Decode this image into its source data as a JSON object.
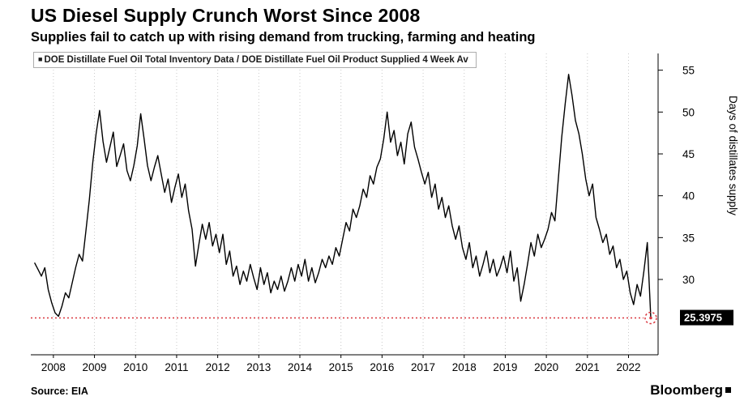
{
  "header": {
    "title": "US Diesel Supply Crunch Worst Since 2008",
    "subtitle": "Supplies fail to catch up with rising demand from trucking, farming and heating"
  },
  "legend": {
    "marker": "■",
    "label": "DOE Distillate Fuel Oil Total Inventory Data / DOE Distillate Fuel Oil Product Supplied 4 Week Av"
  },
  "footer": {
    "source": "Source: EIA",
    "brand": "Bloomberg"
  },
  "chart_data": {
    "type": "line",
    "title": "US Diesel Supply Crunch Worst Since 2008",
    "xlabel": "",
    "ylabel": "Days of distillates supply",
    "xlim": [
      2007.45,
      2022.72
    ],
    "ylim": [
      21,
      57
    ],
    "x_ticks": [
      2008,
      2009,
      2010,
      2011,
      2012,
      2013,
      2014,
      2015,
      2016,
      2017,
      2018,
      2019,
      2020,
      2021,
      2022
    ],
    "y_ticks": [
      30,
      35,
      40,
      45,
      50,
      55
    ],
    "grid": "vertical-dotted",
    "legend_position": "top-left",
    "line_color": "#000000",
    "series": [
      {
        "name": "DOE Distillate Fuel Oil Total Inventory Data / DOE Distillate Fuel Oil Product Supplied 4 Week Av",
        "color": "#000000",
        "x_start": 2007.5417,
        "x_step": 0.0833333,
        "values": [
          32.0,
          31.2,
          30.4,
          31.4,
          28.8,
          27.2,
          26.0,
          25.6,
          26.8,
          28.4,
          27.8,
          29.6,
          31.4,
          33.0,
          32.2,
          35.8,
          39.5,
          44.0,
          47.5,
          50.2,
          46.5,
          44.0,
          45.8,
          47.6,
          43.5,
          44.8,
          46.2,
          43.0,
          41.8,
          43.6,
          46.0,
          49.8,
          46.8,
          43.6,
          41.8,
          43.4,
          44.8,
          42.6,
          40.4,
          42.0,
          39.2,
          41.0,
          42.6,
          39.8,
          41.4,
          38.2,
          36.0,
          31.6,
          34.2,
          36.6,
          34.8,
          36.8,
          34.0,
          35.4,
          33.2,
          35.4,
          31.8,
          33.4,
          30.4,
          31.6,
          29.4,
          31.0,
          29.8,
          31.8,
          30.2,
          28.8,
          31.4,
          29.4,
          30.8,
          28.4,
          29.8,
          28.8,
          30.4,
          28.6,
          29.8,
          31.4,
          29.8,
          31.8,
          30.4,
          32.4,
          29.8,
          31.4,
          29.6,
          30.8,
          32.4,
          31.4,
          32.8,
          31.8,
          33.8,
          32.8,
          34.8,
          36.8,
          35.8,
          38.4,
          37.4,
          38.8,
          40.8,
          39.8,
          42.4,
          41.4,
          43.4,
          44.4,
          46.8,
          50.0,
          46.4,
          47.8,
          44.8,
          46.4,
          43.8,
          47.4,
          48.8,
          45.8,
          44.4,
          42.8,
          41.4,
          42.8,
          39.8,
          41.4,
          38.4,
          39.8,
          37.4,
          38.8,
          36.4,
          34.8,
          36.4,
          33.8,
          32.4,
          34.4,
          31.4,
          32.8,
          30.4,
          31.8,
          33.4,
          30.8,
          32.4,
          30.4,
          31.4,
          32.8,
          30.8,
          33.4,
          29.8,
          31.4,
          27.4,
          29.4,
          31.8,
          34.4,
          32.8,
          35.4,
          33.8,
          34.8,
          36.0,
          38.0,
          37.0,
          42.0,
          47.0,
          51.0,
          54.5,
          52.0,
          49.0,
          47.4,
          45.0,
          42.0,
          40.0,
          41.4,
          37.4,
          36.0,
          34.4,
          35.4,
          33.0,
          34.0,
          31.4,
          32.4,
          30.0,
          31.0,
          28.4,
          27.0,
          29.4,
          28.0,
          31.0,
          34.4,
          25.3975
        ]
      }
    ],
    "annotation": {
      "value": 25.3975,
      "label": "25.3975",
      "color": "#d9363e",
      "label_bg": "#000000",
      "label_color": "#ffffff"
    }
  }
}
